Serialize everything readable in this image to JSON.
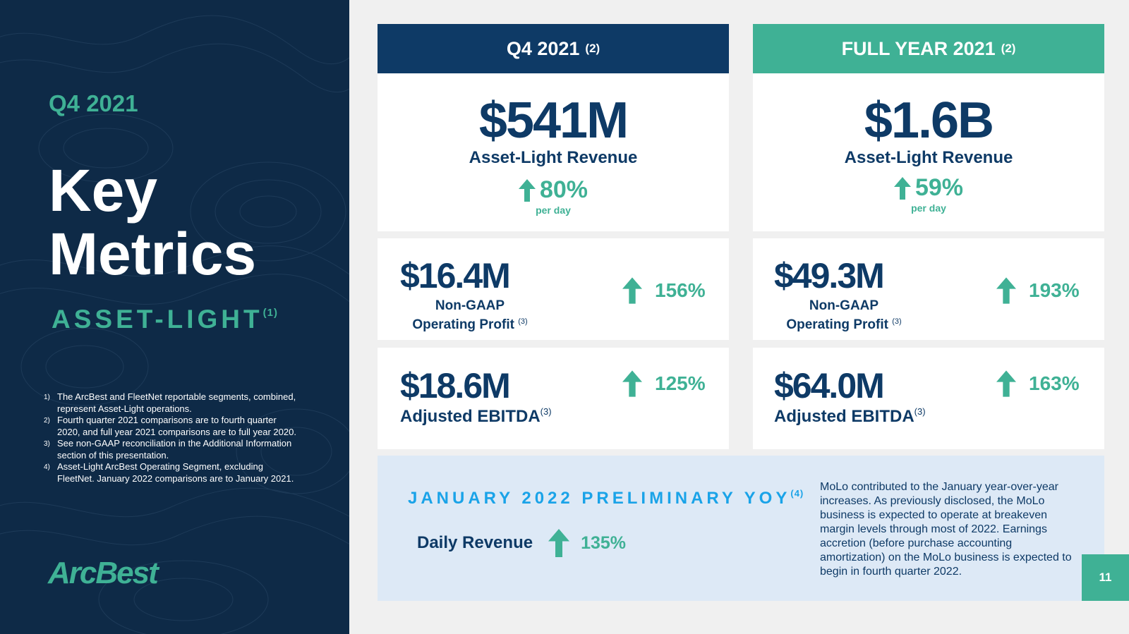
{
  "left": {
    "eyebrow": "Q4 2021",
    "title_line1": "Key",
    "title_line2": "Metrics",
    "subtitle": "ASSET-LIGHT",
    "subtitle_note": "(1)",
    "footnotes": [
      {
        "num": "1)",
        "text": "The ArcBest and FleetNet reportable segments, combined, represent Asset-Light operations."
      },
      {
        "num": "2)",
        "text": "Fourth quarter 2021 comparisons are to fourth quarter 2020, and full year 2021 comparisons are to full year 2020."
      },
      {
        "num": "3)",
        "text": "See non-GAAP reconciliation in the Additional Information section of this presentation."
      },
      {
        "num": "4)",
        "text": "Asset-Light ArcBest Operating Segment, excluding FleetNet. January 2022 comparisons are to January 2021."
      }
    ],
    "logo": "ArcBest"
  },
  "q4": {
    "header": "Q4 2021",
    "header_note": "(2)",
    "revenue": {
      "amount": "$541M",
      "label": "Asset-Light Revenue",
      "change": "80%",
      "sub": "per day"
    },
    "profit": {
      "amount": "$16.4M",
      "label_line1": "Non-GAAP",
      "label_line2": "Operating Profit",
      "note": "(3)",
      "change": "156%"
    },
    "ebitda": {
      "amount": "$18.6M",
      "label": "Adjusted EBITDA",
      "note": "(3)",
      "change": "125%"
    }
  },
  "fy": {
    "header": "FULL YEAR 2021",
    "header_note": "(2)",
    "revenue": {
      "amount": "$1.6B",
      "label": "Asset-Light Revenue",
      "change": "59%",
      "sub": "per day"
    },
    "profit": {
      "amount": "$49.3M",
      "label_line1": "Non-GAAP",
      "label_line2": "Operating Profit",
      "note": "(3)",
      "change": "193%"
    },
    "ebitda": {
      "amount": "$64.0M",
      "label": "Adjusted EBITDA",
      "note": "(3)",
      "change": "163%"
    }
  },
  "january": {
    "title": "JANUARY 2022 PRELIMINARY YOY",
    "title_note": "(4)",
    "metric_label": "Daily Revenue",
    "metric_change": "135%",
    "commentary": "MoLo contributed to the January year-over-year increases. As previously disclosed, the MoLo business is expected to operate at breakeven margin levels through most of 2022. Earnings accretion (before purchase accounting amortization) on the MoLo business is expected to begin in fourth quarter 2022."
  },
  "page_number": "11",
  "colors": {
    "navy": "#0e2a47",
    "dark_blue": "#0e3a66",
    "teal": "#3fb195",
    "sky": "#1aa3e8",
    "panel": "#dde9f6"
  }
}
